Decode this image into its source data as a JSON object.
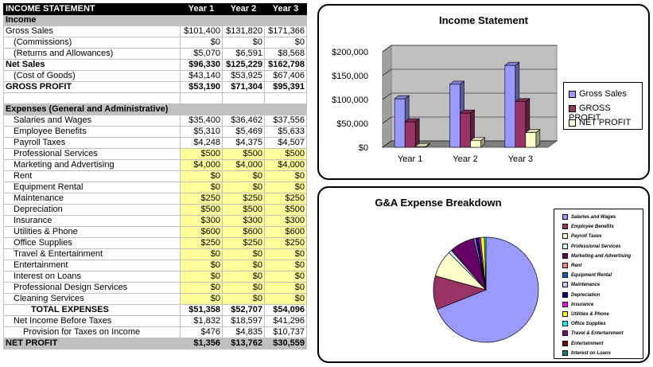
{
  "table": {
    "header": [
      "INCOME STATEMENT",
      "Year 1",
      "Year 2",
      "Year 3"
    ],
    "rows": [
      {
        "label": "Income",
        "type": "sec",
        "vals": [
          "",
          "",
          ""
        ]
      },
      {
        "label": "Gross Sales",
        "type": "plain",
        "indent": 0,
        "vals": [
          "$101,400",
          "$131,820",
          "$171,366"
        ]
      },
      {
        "label": "(Commissions)",
        "type": "plain",
        "indent": 1,
        "vals": [
          "$0",
          "$0",
          "$0"
        ]
      },
      {
        "label": "(Returns and Allowances)",
        "type": "plain",
        "indent": 1,
        "vals": [
          "$5,070",
          "$6,591",
          "$8,568"
        ]
      },
      {
        "label": "Net Sales",
        "type": "bold",
        "indent": 0,
        "vals": [
          "$96,330",
          "$125,229",
          "$162,798"
        ]
      },
      {
        "label": "(Cost of Goods)",
        "type": "plain",
        "indent": 1,
        "vals": [
          "$43,140",
          "$53,925",
          "$67,406"
        ]
      },
      {
        "label": "GROSS PROFIT",
        "type": "bold",
        "indent": 0,
        "vals": [
          "$53,190",
          "$71,304",
          "$95,391"
        ]
      },
      {
        "label": "",
        "type": "blank",
        "vals": [
          "",
          "",
          ""
        ]
      },
      {
        "label": "Expenses (General and Administrative)",
        "type": "sec",
        "vals": [
          "",
          "",
          ""
        ]
      },
      {
        "label": "Salaries and Wages",
        "type": "plain",
        "indent": 1,
        "vals": [
          "$35,400",
          "$36,462",
          "$37,556"
        ]
      },
      {
        "label": "Employee Benefits",
        "type": "plain",
        "indent": 1,
        "vals": [
          "$5,310",
          "$5,469",
          "$5,633"
        ]
      },
      {
        "label": "Payroll Taxes",
        "type": "plain",
        "indent": 1,
        "vals": [
          "$4,248",
          "$4,375",
          "$4,507"
        ]
      },
      {
        "label": "Professional Services",
        "type": "yel",
        "indent": 1,
        "vals": [
          "$500",
          "$500",
          "$500"
        ]
      },
      {
        "label": "Marketing and Advertising",
        "type": "yel",
        "indent": 1,
        "vals": [
          "$4,000",
          "$4,000",
          "$4,000"
        ]
      },
      {
        "label": "Rent",
        "type": "yel",
        "indent": 1,
        "vals": [
          "$0",
          "$0",
          "$0"
        ]
      },
      {
        "label": "Equipment Rental",
        "type": "yel",
        "indent": 1,
        "vals": [
          "$0",
          "$0",
          "$0"
        ]
      },
      {
        "label": "Maintenance",
        "type": "yel",
        "indent": 1,
        "vals": [
          "$250",
          "$250",
          "$250"
        ]
      },
      {
        "label": "Depreciation",
        "type": "yel",
        "indent": 1,
        "vals": [
          "$500",
          "$500",
          "$500"
        ]
      },
      {
        "label": "Insurance",
        "type": "yel",
        "indent": 1,
        "vals": [
          "$300",
          "$300",
          "$300"
        ]
      },
      {
        "label": "Utilities & Phone",
        "type": "yel",
        "indent": 1,
        "vals": [
          "$600",
          "$600",
          "$600"
        ]
      },
      {
        "label": "Office Supplies",
        "type": "yel",
        "indent": 1,
        "vals": [
          "$250",
          "$250",
          "$250"
        ]
      },
      {
        "label": "Travel & Entertainment",
        "type": "yel",
        "indent": 1,
        "vals": [
          "$0",
          "$0",
          "$0"
        ]
      },
      {
        "label": "Entertainment",
        "type": "yel",
        "indent": 1,
        "vals": [
          "$0",
          "$0",
          "$0"
        ]
      },
      {
        "label": "Interest on Loans",
        "type": "yel",
        "indent": 1,
        "vals": [
          "$0",
          "$0",
          "$0"
        ]
      },
      {
        "label": "Professional Design Services",
        "type": "yel",
        "indent": 1,
        "vals": [
          "$0",
          "$0",
          "$0"
        ]
      },
      {
        "label": "Cleaning Services",
        "type": "yel",
        "indent": 1,
        "vals": [
          "$0",
          "$0",
          "$0"
        ]
      },
      {
        "label": "TOTAL EXPENSES",
        "type": "bold",
        "indent": 3,
        "vals": [
          "$51,358",
          "$52,707",
          "$54,096"
        ]
      },
      {
        "label": "Net Income Before Taxes",
        "type": "plain",
        "indent": 1,
        "vals": [
          "$1,832",
          "$18,597",
          "$41,296"
        ]
      },
      {
        "label": "Provision for Taxes on Income",
        "type": "plain",
        "indent": 2,
        "vals": [
          "$476",
          "$4,835",
          "$10,737"
        ]
      },
      {
        "label": "NET PROFIT",
        "type": "total",
        "indent": 0,
        "vals": [
          "$1,356",
          "$13,762",
          "$30,559"
        ]
      }
    ]
  },
  "chart_data": [
    {
      "type": "bar",
      "title": "Income Statement",
      "categories": [
        "Year 1",
        "Year 2",
        "Year 3"
      ],
      "series": [
        {
          "name": "Gross Sales",
          "values": [
            101400,
            131820,
            171366
          ],
          "color": "#9999ff"
        },
        {
          "name": "GROSS PROFIT",
          "values": [
            53190,
            71304,
            95391
          ],
          "color": "#993366"
        },
        {
          "name": "NET PROFIT",
          "values": [
            1356,
            13762,
            30559
          ],
          "color": "#ffffcc"
        }
      ],
      "yticks": [
        "$200,000",
        "$150,000",
        "$100,000",
        "$50,000",
        "$0"
      ],
      "ylim": [
        0,
        200000
      ],
      "legend": "right",
      "wall_color": "#c0c0c0"
    },
    {
      "type": "pie",
      "title": "G&A Expense Breakdown",
      "labels": [
        "Salaries and Wages",
        "Employee Benefits",
        "Payroll Taxes",
        "Professional Services",
        "Marketing and Advertising",
        "Rent",
        "Equipment Rental",
        "Maintenance",
        "Depreciation",
        "Insurance",
        "Utilities & Phone",
        "Office Supplies",
        "Travel & Entertainment",
        "Entertainment",
        "Interest on Loans",
        "Professional Design Services"
      ],
      "values": [
        35400,
        5310,
        4248,
        500,
        4000,
        0,
        0,
        250,
        500,
        300,
        600,
        250,
        0,
        0,
        0,
        0
      ],
      "colors": [
        "#9999ff",
        "#993366",
        "#ffffcc",
        "#ccffff",
        "#660066",
        "#ff8080",
        "#0066cc",
        "#ccccff",
        "#000080",
        "#ff00ff",
        "#ffff00",
        "#00ffff",
        "#800080",
        "#800000",
        "#008080",
        "#0000ff"
      ],
      "legend": "right"
    }
  ]
}
